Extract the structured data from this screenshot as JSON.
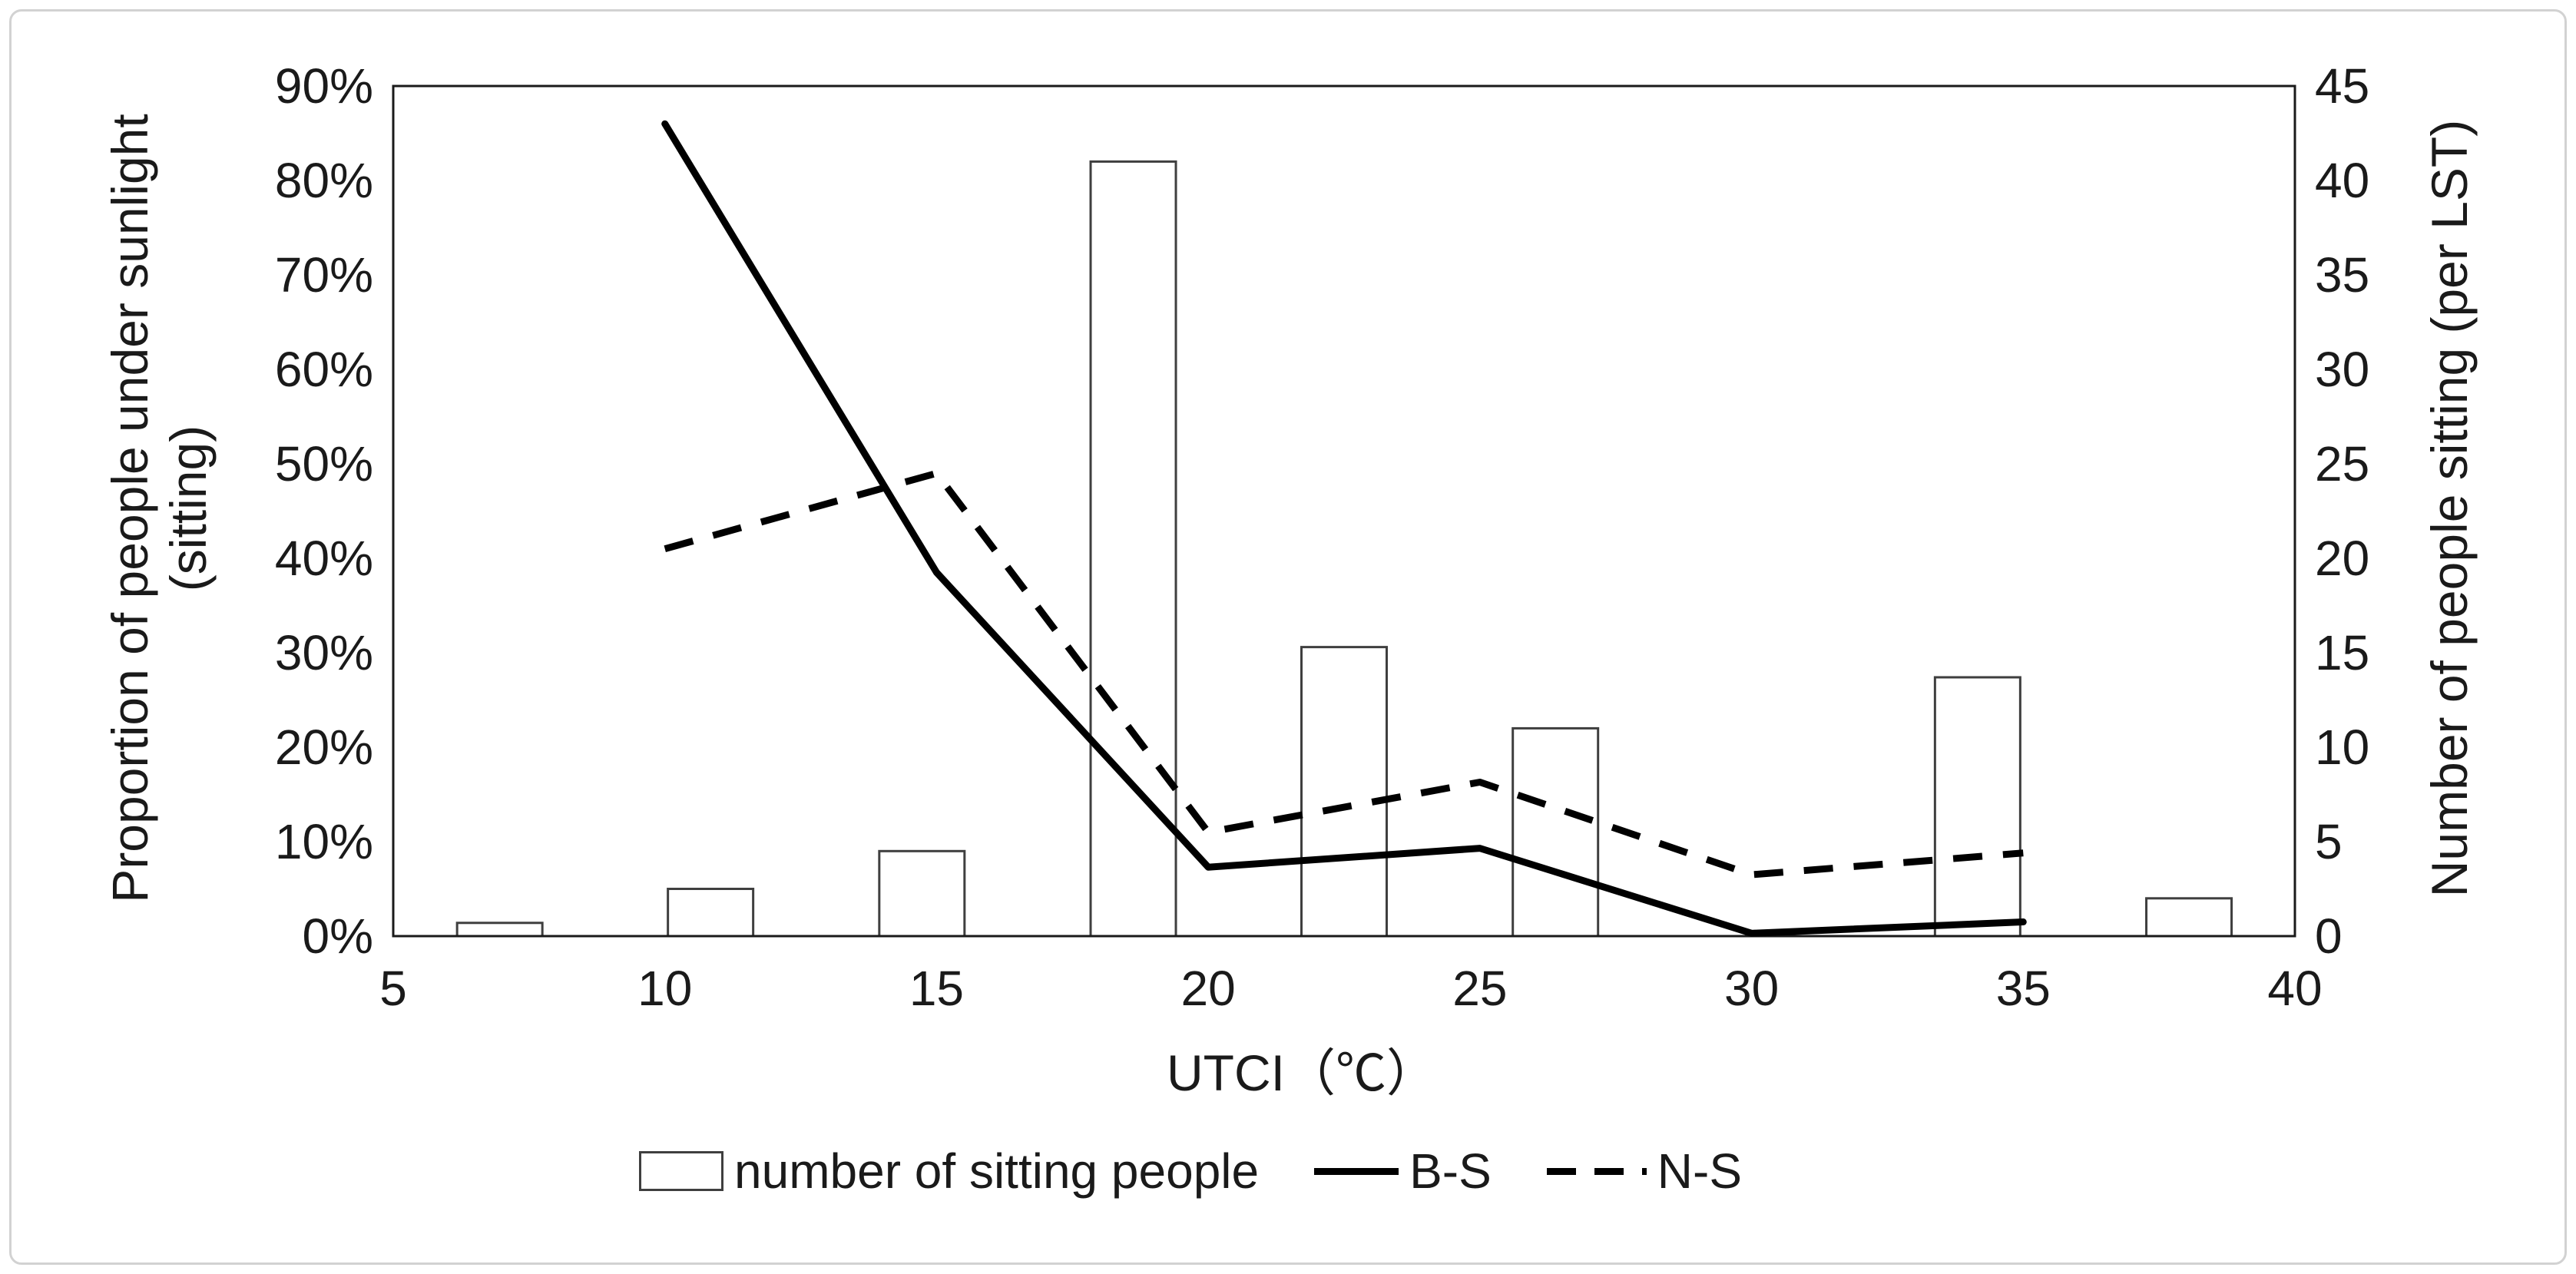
{
  "chart_data": {
    "type": "bar",
    "subtype": "combo-bar-line",
    "title": "",
    "x_axis": {
      "label": "UTCI（℃）",
      "ticks": [
        5,
        10,
        15,
        20,
        25,
        30,
        35,
        40
      ],
      "range": [
        5,
        40
      ],
      "grid": false
    },
    "y_left_axis": {
      "label_line1": "Proportion of people under sunlight",
      "label_line2": "(sitting)",
      "tick_labels": [
        "0%",
        "10%",
        "20%",
        "30%",
        "40%",
        "50%",
        "60%",
        "70%",
        "80%",
        "90%"
      ],
      "range": [
        0,
        90
      ],
      "grid": false
    },
    "y_right_axis": {
      "label": "Number of people sitting (per LST)",
      "ticks": [
        0,
        5,
        10,
        15,
        20,
        25,
        30,
        35,
        40,
        45
      ],
      "range": [
        0,
        45
      ],
      "grid": false
    },
    "bars": {
      "name": "number of sitting people",
      "axis": "right",
      "bin_width_utci": 1.57,
      "fill": "#ffffff",
      "stroke": "#3f3f3f",
      "data": [
        {
          "utci": 6.96,
          "people": 0.7
        },
        {
          "utci": 10.84,
          "people": 2.5
        },
        {
          "utci": 14.73,
          "people": 4.5
        },
        {
          "utci": 18.62,
          "people": 41.0
        },
        {
          "utci": 22.5,
          "people": 15.3
        },
        {
          "utci": 26.39,
          "people": 11.0
        },
        {
          "utci": 34.16,
          "people": 13.7
        },
        {
          "utci": 38.05,
          "people": 2.0
        }
      ]
    },
    "series": [
      {
        "name": "B-S",
        "style": "solid",
        "axis": "left",
        "color": "#000000",
        "points": [
          [
            10,
            86
          ],
          [
            15,
            38.5
          ],
          [
            20,
            7.3
          ],
          [
            25,
            9.3
          ],
          [
            30,
            0.3
          ],
          [
            35,
            1.5
          ]
        ]
      },
      {
        "name": "N-S",
        "style": "dashed",
        "axis": "left",
        "color": "#000000",
        "points": [
          [
            10,
            41
          ],
          [
            15,
            49
          ],
          [
            20,
            11
          ],
          [
            25,
            16.3
          ],
          [
            30,
            6.5
          ],
          [
            35,
            8.8
          ]
        ]
      }
    ],
    "legend": {
      "position": "bottom",
      "entries": [
        {
          "swatch": "bar-outline",
          "label": "number of sitting people"
        },
        {
          "swatch": "solid-line",
          "label": "B-S"
        },
        {
          "swatch": "dashed-line",
          "label": "N-S"
        }
      ]
    }
  }
}
